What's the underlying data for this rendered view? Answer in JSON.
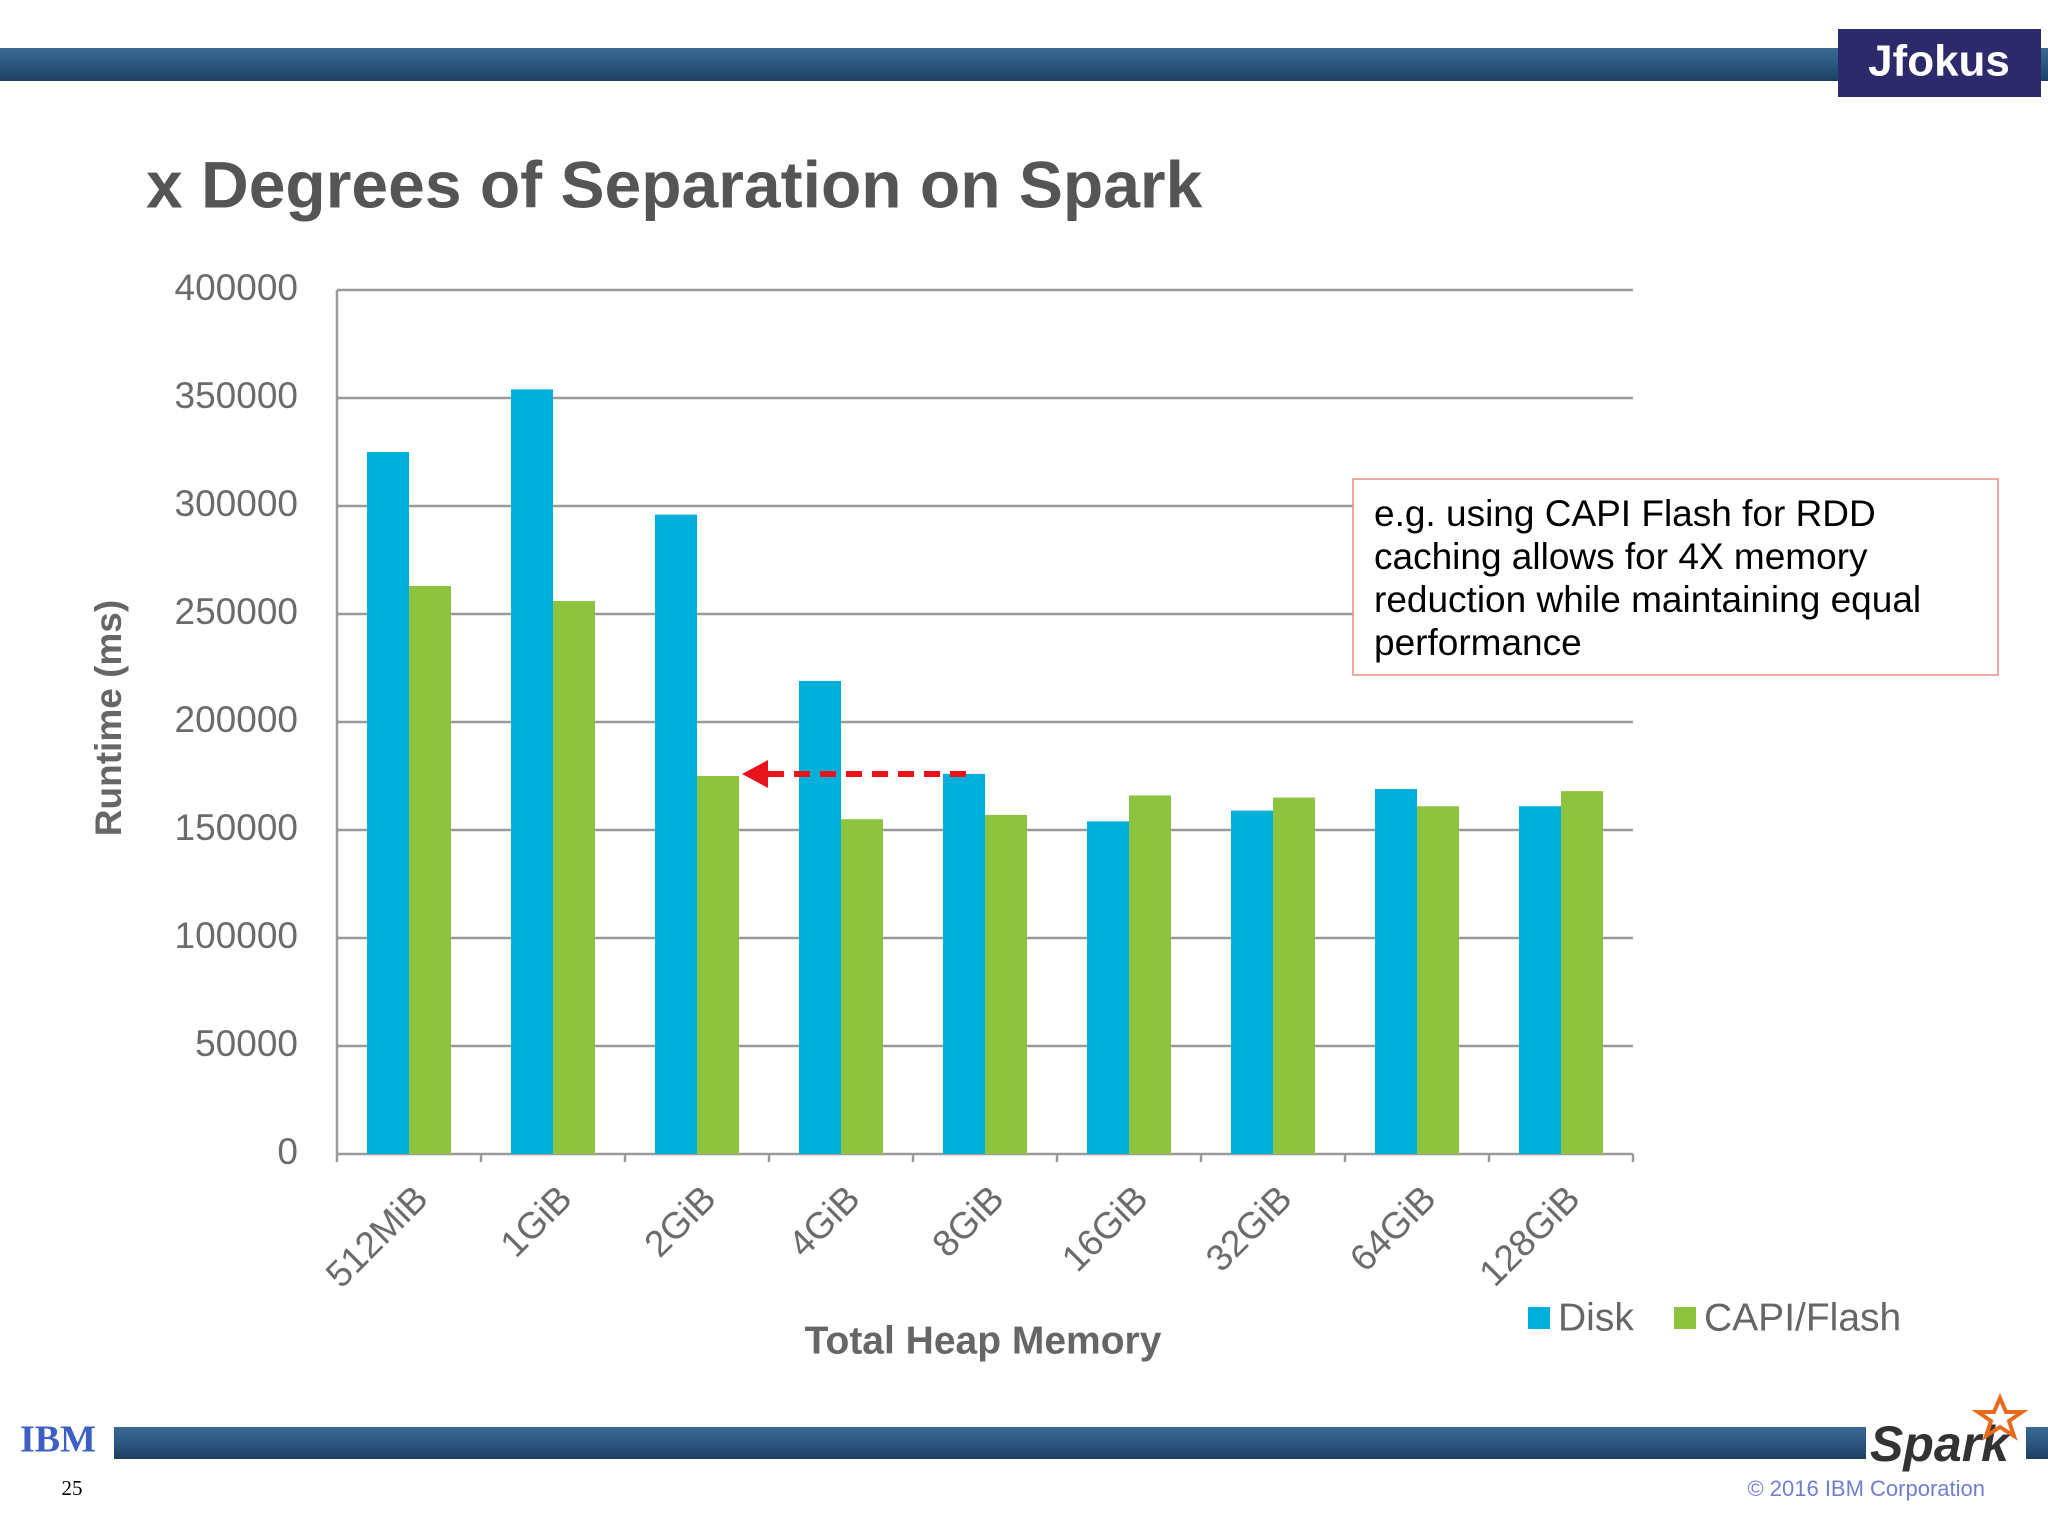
{
  "slide": {
    "logo": "Jfokus",
    "ibm": "IBM",
    "spark": "Spark",
    "page": "25",
    "copyright": "© 2016 IBM Corporation"
  },
  "chart_data": {
    "type": "bar",
    "title": "x Degrees of Separation on Spark",
    "x_label": "Total Heap Memory",
    "y_label": "Runtime (ms)",
    "categories": [
      "512MiB",
      "1GiB",
      "2GiB",
      "4GiB",
      "8GiB",
      "16GiB",
      "32GiB",
      "64GiB",
      "128GiB"
    ],
    "series": [
      {
        "name": "Disk",
        "color": "#00b0da",
        "values": [
          325000,
          354000,
          296000,
          219000,
          176000,
          154000,
          159000,
          169000,
          161000
        ]
      },
      {
        "name": "CAPI/Flash",
        "color": "#8dc33f",
        "values": [
          263000,
          256000,
          175000,
          155000,
          157000,
          166000,
          165000,
          161000,
          168000
        ]
      }
    ],
    "ylim": [
      0,
      400000
    ],
    "yticks": [
      0,
      50000,
      100000,
      150000,
      200000,
      250000,
      300000,
      350000,
      400000
    ],
    "grid": true,
    "legend": "bottom-right",
    "annotation": [
      "e.g. using CAPI Flash for RDD",
      "caching allows for 4X memory",
      "reduction while maintaining equal",
      "performance"
    ]
  }
}
